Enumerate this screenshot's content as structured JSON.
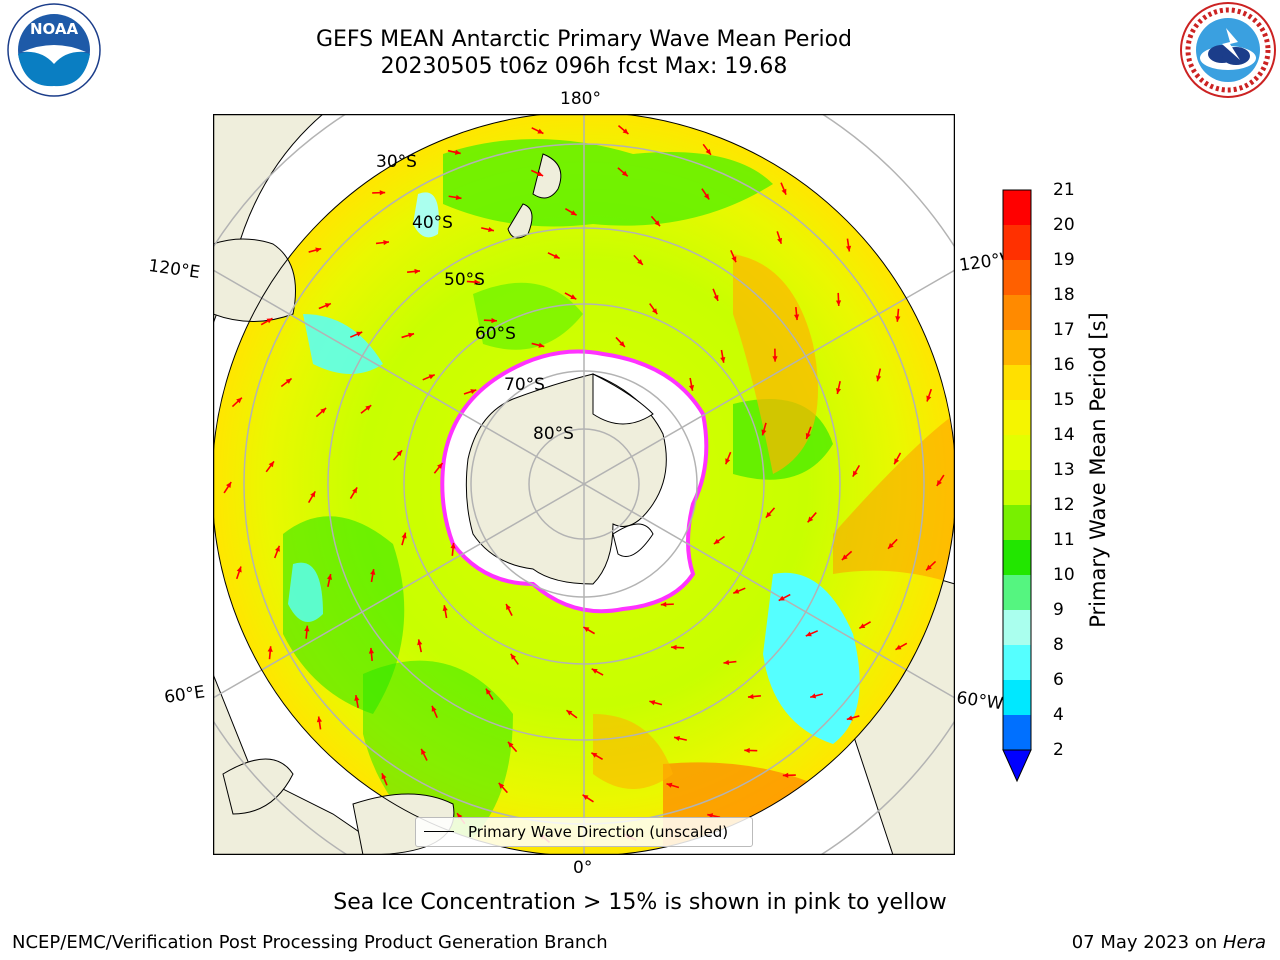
{
  "header": {
    "title_line1": "GEFS MEAN Antarctic Primary Wave Mean Period",
    "title_line2": "20230505 t06z 096h fcst   Max: 19.68"
  },
  "logos": {
    "left": {
      "icon": "noaa-logo",
      "text": "NOAA"
    },
    "right": {
      "icon": "nws-logo"
    }
  },
  "map": {
    "projection": "south-polar-stereographic",
    "longitude_labels": {
      "top": "180°",
      "bottom": "0°",
      "upper_left": "120°E",
      "lower_left": "60°E",
      "upper_right": "120°W",
      "lower_right": "60°W"
    },
    "latitude_labels": [
      "30°S",
      "40°S",
      "50°S",
      "60°S",
      "70°S",
      "80°S"
    ],
    "colors": {
      "land": "#efeedc",
      "ice": "#ffffff",
      "grid": "#b3b3b3",
      "arrow": "#ff0000",
      "ice_edge": "#ff33ff"
    }
  },
  "colorbar": {
    "label": "Primary Wave Mean Period [s]",
    "ticks": [
      "21",
      "20",
      "19",
      "18",
      "17",
      "16",
      "15",
      "14",
      "13",
      "12",
      "11",
      "10",
      "9",
      "8",
      "6",
      "4",
      "2"
    ],
    "colors": [
      "#ff0000",
      "#ff3000",
      "#ff6000",
      "#ff8a00",
      "#ffb400",
      "#ffe000",
      "#f5f500",
      "#e3ff00",
      "#c8ff00",
      "#78f000",
      "#22e600",
      "#55f580",
      "#aaffee",
      "#55ffff",
      "#00e8ff",
      "#0070ff",
      "#0000ff"
    ]
  },
  "legend": {
    "text": "Primary Wave Direction (unscaled)"
  },
  "caption": "Sea Ice Concentration > 15% is shown in pink to yellow",
  "footer": {
    "left": "NCEP/EMC/Verification Post Processing Product Generation Branch",
    "right_date": "07 May 2023 on ",
    "right_host": "Hera"
  }
}
